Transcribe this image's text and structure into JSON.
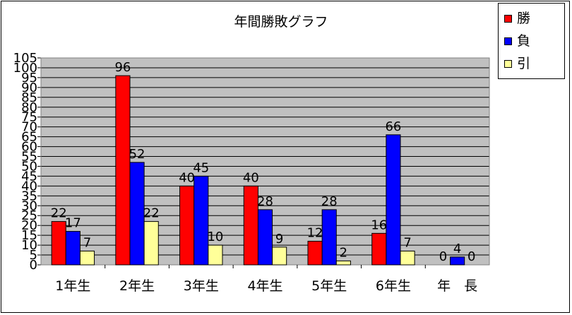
{
  "chart_data": {
    "type": "bar",
    "title": "年間勝敗グラフ",
    "categories": [
      "1年生",
      "2年生",
      "3年生",
      "4年生",
      "5年生",
      "6年生",
      "年　長"
    ],
    "series": [
      {
        "name": "勝",
        "color": "#ff0000",
        "values": [
          22,
          96,
          40,
          40,
          12,
          16,
          0
        ]
      },
      {
        "name": "負",
        "color": "#0000ff",
        "values": [
          17,
          52,
          45,
          28,
          28,
          66,
          4
        ]
      },
      {
        "name": "引",
        "color": "#ffff99",
        "values": [
          7,
          22,
          10,
          9,
          2,
          7,
          0
        ]
      }
    ],
    "data_labels_shown": [
      [
        true,
        true,
        true,
        true,
        true,
        true,
        true
      ],
      [
        true,
        true,
        true,
        true,
        true,
        true,
        true
      ],
      [
        true,
        true,
        true,
        true,
        true,
        true,
        true
      ]
    ],
    "ylim": [
      0,
      105
    ],
    "ytick_step": 5,
    "yticks": [
      "0",
      "5",
      "10",
      "15",
      "20",
      "25",
      "30",
      "35",
      "40",
      "45",
      "50",
      "55",
      "60",
      "65",
      "70",
      "75",
      "80",
      "85",
      "90",
      "95",
      "100",
      "105"
    ],
    "grid": true,
    "plot_background": "#c0c0c0",
    "legend": "top-right",
    "xlabel": "",
    "ylabel": ""
  }
}
